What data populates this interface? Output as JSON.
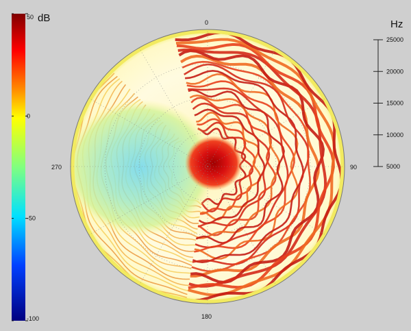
{
  "chart_data": {
    "type": "heatmap",
    "projection": "polar",
    "description_of_axes": "angle (degrees) around circle, radius = frequency (Hz), color = level (dB)",
    "angle_ticks": [
      "0",
      "90",
      "180",
      "270"
    ],
    "radial_axis": {
      "unit": "Hz",
      "ticks": [
        "25000",
        "20000",
        "15000",
        "10000",
        "5000"
      ],
      "values": [
        25000,
        20000,
        15000,
        10000,
        5000
      ],
      "range": [
        5000,
        25000
      ]
    },
    "colorbar": {
      "unit": "dB",
      "ticks": [
        "50",
        "0",
        "-50",
        "-100"
      ],
      "values": [
        50,
        0,
        -50,
        -100
      ],
      "range": [
        -100,
        50
      ],
      "colormap": "jet"
    },
    "regions": [
      {
        "area": "center",
        "level_db": 45
      },
      {
        "area": "left-center lobe",
        "level_db": -35
      },
      {
        "area": "right rings",
        "level_db": 35
      },
      {
        "area": "outer rim",
        "level_db": 10
      }
    ],
    "grid": true
  }
}
